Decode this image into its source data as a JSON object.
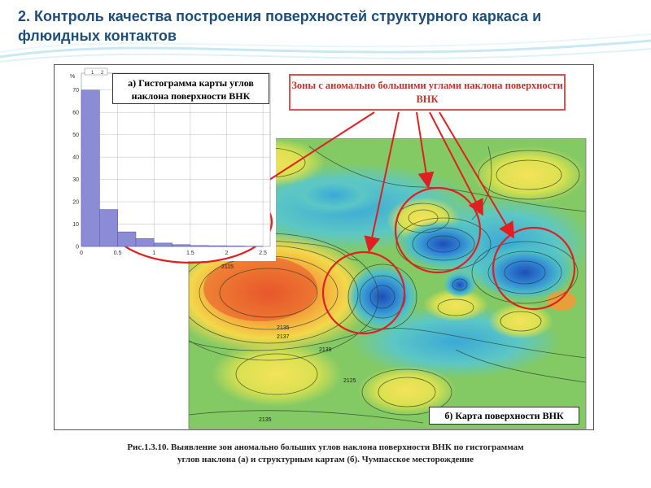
{
  "slide": {
    "title": "2. Контроль качества построения поверхностей структурного каркаса и флюидных контактов"
  },
  "histogram": {
    "unit_label": "%",
    "top_marks": [
      "1",
      "2"
    ],
    "y_ticks": [
      "70",
      "60",
      "50",
      "40",
      "30",
      "20",
      "10",
      "0"
    ],
    "x_ticks": [
      "0",
      "0.5",
      "1",
      "1.5",
      "2",
      "2.5"
    ],
    "bar_color": "#8b8bd6"
  },
  "callouts": {
    "histogram_label": "а) Гистограмма карты углов наклона поверхности ВНК",
    "zones_label": "Зоны с аномально большими углами наклона поверхности ВНК",
    "map_label": "б) Карта поверхности ВНК"
  },
  "map": {
    "contour_labels": [
      "2115",
      "2135",
      "2137",
      "2139",
      "2125",
      "2135"
    ]
  },
  "caption": {
    "line1": "Рис.1.3.10. Выявление зон аномально больших углов наклона поверхности ВНК по гистограммам",
    "line2": "углов наклона (а) и структурным картам (б). Чумпасское месторождение"
  },
  "colors": {
    "title": "#1f4e79",
    "highlight": "#e02020",
    "callout_border": "#d9534f"
  },
  "chart_data": {
    "type": "bar",
    "categories": [
      "0-0.25",
      "0.25-0.5",
      "0.5-0.75",
      "0.75-1",
      "1-1.25",
      "1.25-1.5",
      "1.5-1.75",
      "1.75-2",
      "2-2.25",
      "2.25-2.5"
    ],
    "values": [
      70,
      16.5,
      6.5,
      3.5,
      1.5,
      0.8,
      0.4,
      0.3,
      0.2,
      0.1
    ],
    "xlabel": "",
    "ylabel": "%",
    "ylim": [
      0,
      75
    ],
    "xlim": [
      0,
      2.6
    ]
  }
}
